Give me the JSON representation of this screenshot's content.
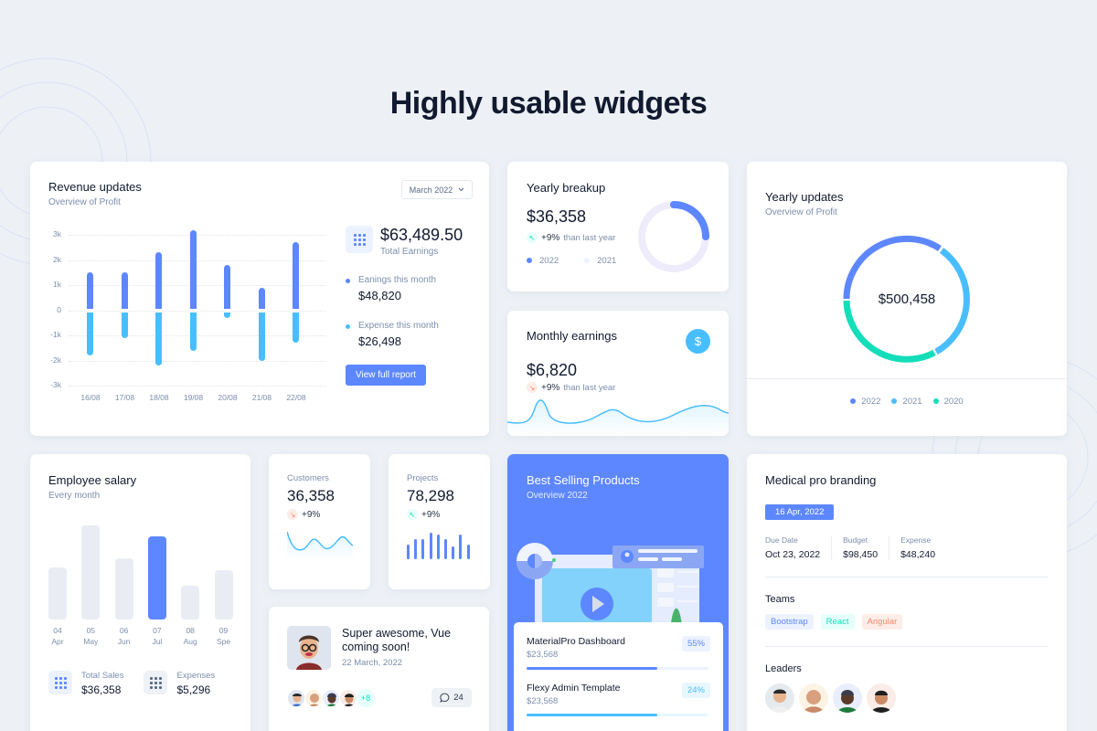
{
  "page": {
    "title": "Highly usable widgets"
  },
  "colors": {
    "primary": "#5d87ff",
    "secondary": "#49beff",
    "success": "#13deb9",
    "warning": "#fa896b",
    "background": "#edf1f6"
  },
  "revenue": {
    "title": "Revenue updates",
    "subtitle": "Overview of Profit",
    "month_select": "March 2022",
    "total_value": "$63,489.50",
    "total_label": "Total Earnings",
    "earnings_label": "Eanings this month",
    "earnings_value": "$48,820",
    "expense_label": "Expense this month",
    "expense_value": "$26,498",
    "button_label": "View full report"
  },
  "breakup": {
    "title": "Yearly breakup",
    "value": "$36,358",
    "trend_pct": "+9%",
    "trend_label": "than last year",
    "legend": [
      "2022",
      "2021"
    ]
  },
  "monthly": {
    "title": "Monthly earnings",
    "value": "$6,820",
    "trend_pct": "+9%",
    "trend_label": "than last year",
    "icon": "$"
  },
  "updates": {
    "title": "Yearly updates",
    "subtitle": "Overview of Profit",
    "center_value": "$500,458",
    "legend": [
      "2022",
      "2021",
      "2020"
    ]
  },
  "salary": {
    "title": "Employee salary",
    "subtitle": "Every month",
    "months": [
      {
        "num": "04",
        "name": "Apr"
      },
      {
        "num": "05",
        "name": "May"
      },
      {
        "num": "06",
        "name": "Jun"
      },
      {
        "num": "07",
        "name": "Jul"
      },
      {
        "num": "08",
        "name": "Aug"
      },
      {
        "num": "09",
        "name": "Spe"
      }
    ],
    "total_sales_label": "Total Sales",
    "total_sales_value": "$36,358",
    "expenses_label": "Expenses",
    "expenses_value": "$5,296"
  },
  "customers": {
    "label": "Customers",
    "value": "36,358",
    "trend_pct": "+9%"
  },
  "projects": {
    "label": "Projects",
    "value": "78,298",
    "trend_pct": "+9%"
  },
  "post": {
    "title": "Super awesome, Vue coming soon!",
    "date": "22 March, 2022",
    "more_count": "+8",
    "comments": "24"
  },
  "bestsell": {
    "title": "Best Selling Products",
    "subtitle": "Overview 2022",
    "products": [
      {
        "name": "MaterialPro Dashboard",
        "price": "$23,568",
        "pct": "55%"
      },
      {
        "name": "Flexy Admin Template",
        "price": "$23,568",
        "pct": "24%"
      }
    ]
  },
  "medical": {
    "title": "Medical pro branding",
    "date_badge": "16 Apr, 2022",
    "due_date_label": "Due Date",
    "due_date_value": "Oct 23, 2022",
    "budget_label": "Budget",
    "budget_value": "$98,450",
    "expense_label": "Expense",
    "expense_value": "$48,240",
    "teams_label": "Teams",
    "teams": [
      "Bootstrap",
      "React",
      "Angular"
    ],
    "leaders_label": "Leaders"
  },
  "chart_data": [
    {
      "type": "bar",
      "title": "Revenue updates",
      "subtitle": "Overview of Profit",
      "categories": [
        "16/08",
        "17/08",
        "18/08",
        "19/08",
        "20/08",
        "21/08",
        "22/08"
      ],
      "series": [
        {
          "name": "Earnings",
          "color": "#5d87ff",
          "values": [
            1.5,
            1.5,
            2.3,
            3.2,
            1.8,
            0.9,
            2.7
          ]
        },
        {
          "name": "Expense",
          "color": "#49beff",
          "values": [
            -1.8,
            -1.1,
            -2.2,
            -1.6,
            -0.3,
            -2.0,
            -1.3
          ]
        }
      ],
      "ylabel": "",
      "xlabel": "",
      "yticks": [
        "3k",
        "2k",
        "1k",
        "0",
        "-1k",
        "-2k",
        "-3k"
      ],
      "ylim": [
        -3,
        3
      ],
      "grid": true
    },
    {
      "type": "pie",
      "title": "Yearly breakup",
      "categories": [
        "2022",
        "2021"
      ],
      "values": [
        25,
        75
      ],
      "colors": [
        "#5d87ff",
        "#ecf2ff"
      ]
    },
    {
      "type": "pie",
      "title": "Yearly updates",
      "categories": [
        "2022",
        "2021",
        "2020"
      ],
      "values": [
        32,
        33,
        35
      ],
      "colors": [
        "#5d87ff",
        "#49beff",
        "#13deb9"
      ]
    },
    {
      "type": "bar",
      "title": "Employee salary",
      "categories": [
        "Apr",
        "May",
        "Jun",
        "Jul",
        "Aug",
        "Spe"
      ],
      "values": [
        55,
        100,
        65,
        88,
        36,
        52
      ],
      "highlight": "Jul"
    },
    {
      "type": "bar",
      "title": "Projects",
      "values": [
        50,
        68,
        68,
        92,
        84,
        68,
        45,
        84,
        50
      ]
    },
    {
      "type": "line",
      "title": "Customers",
      "values": [
        90,
        20,
        60,
        25,
        65,
        40
      ]
    },
    {
      "type": "area",
      "title": "Monthly earnings",
      "values": [
        30,
        70,
        20,
        55,
        25,
        60,
        30
      ]
    }
  ]
}
